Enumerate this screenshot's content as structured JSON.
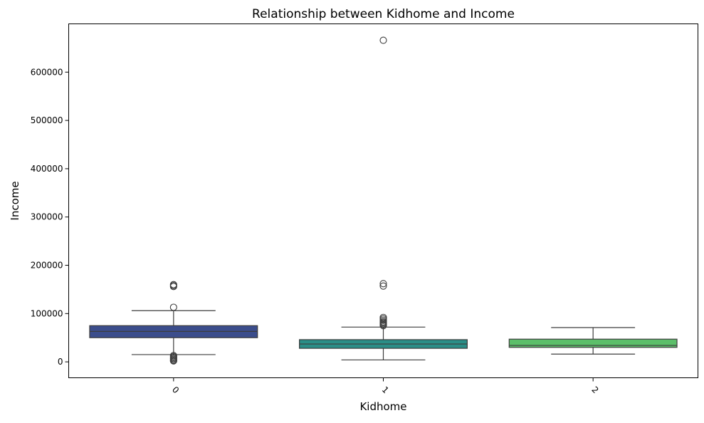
{
  "chart_data": {
    "type": "box",
    "title": "Relationship between Kidhome and Income",
    "xlabel": "Kidhome",
    "ylabel": "Income",
    "categories": [
      "0",
      "1",
      "2"
    ],
    "ylim": [
      -33000,
      700000
    ],
    "yticks": [
      0,
      100000,
      200000,
      300000,
      400000,
      500000,
      600000
    ],
    "ytick_labels": [
      "0",
      "100000",
      "200000",
      "300000",
      "400000",
      "500000",
      "600000"
    ],
    "xtick_rotation": 45,
    "grid": false,
    "boxes": [
      {
        "category": "0",
        "color": "#3b4d8c",
        "whisker_low": 15000,
        "q1": 50000,
        "median": 63000,
        "q3": 75000,
        "whisker_high": 106000,
        "outliers": [
          113000,
          156000,
          158000,
          160000,
          13000,
          11000,
          9000,
          7000,
          5000,
          3000,
          2000
        ]
      },
      {
        "category": "1",
        "color": "#2a8e87",
        "whisker_low": 4000,
        "q1": 28000,
        "median": 37000,
        "q3": 46000,
        "whisker_high": 72000,
        "outliers": [
          666000,
          157000,
          162000,
          92000,
          89000,
          86000,
          83000,
          81000,
          79000,
          77000,
          75000
        ]
      },
      {
        "category": "2",
        "color": "#5cbf6a",
        "whisker_low": 16000,
        "q1": 30000,
        "median": 34000,
        "q3": 47000,
        "whisker_high": 71000,
        "outliers": []
      }
    ]
  }
}
